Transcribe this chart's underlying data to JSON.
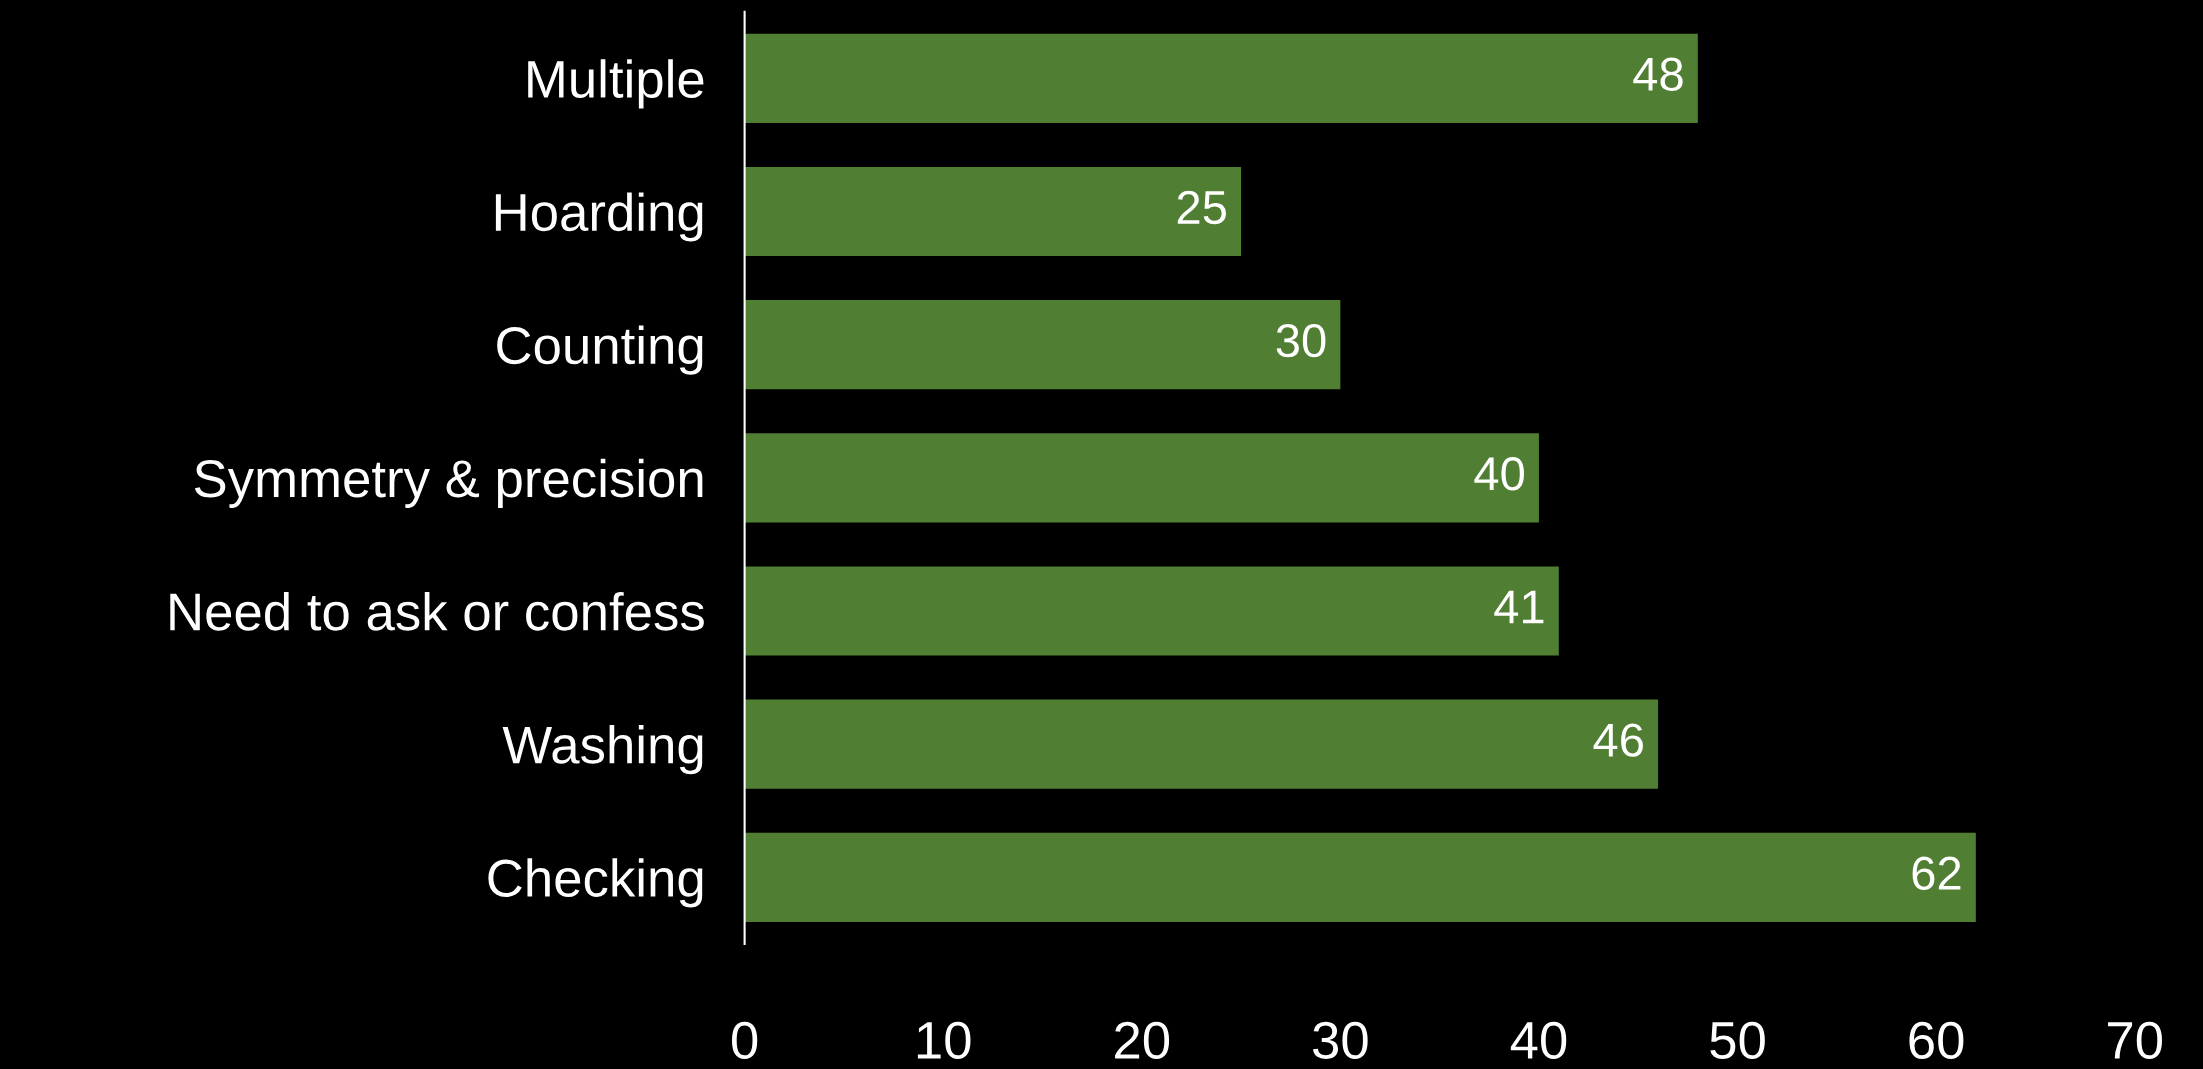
{
  "chart_data": {
    "type": "bar",
    "orientation": "horizontal",
    "categories": [
      "Multiple",
      "Hoarding",
      "Counting",
      "Symmetry & precision",
      "Need to ask or confess",
      "Washing",
      "Checking"
    ],
    "values": [
      48,
      25,
      30,
      40,
      41,
      46,
      62
    ],
    "color": "#507e32",
    "xlim": [
      0,
      70
    ],
    "xticks": [
      0,
      10,
      20,
      30,
      40,
      50,
      60,
      70
    ],
    "data_labels": true,
    "grid": false,
    "legend": false
  }
}
